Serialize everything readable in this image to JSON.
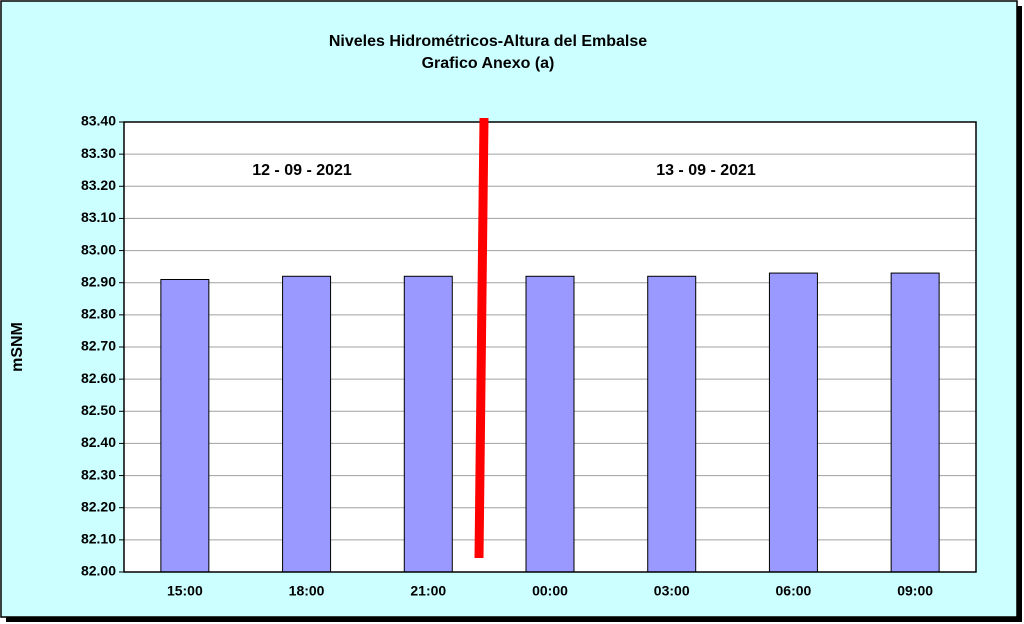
{
  "chart_data": {
    "type": "bar",
    "title": "Niveles Hidrométricos-Altura del Embalse",
    "subtitle": "Grafico Anexo (a)",
    "y_label": "mSNM",
    "annotations": [
      "12 - 09 - 2021",
      "13 - 09 - 2021"
    ],
    "categories": [
      "15:00",
      "18:00",
      "21:00",
      "00:00",
      "03:00",
      "06:00",
      "09:00"
    ],
    "values": [
      82.91,
      82.92,
      82.92,
      82.92,
      82.92,
      82.93,
      82.93
    ],
    "color": "#9999ff",
    "ylim": [
      82,
      83.4
    ],
    "yticks": [
      {
        "value": 82,
        "label": "82.00"
      },
      {
        "value": 82.1,
        "label": "82.10"
      },
      {
        "value": 82.2,
        "label": "82.20"
      },
      {
        "value": 82.3,
        "label": "82.30"
      },
      {
        "value": 82.4,
        "label": "82.40"
      },
      {
        "value": 82.5,
        "label": "82.50"
      },
      {
        "value": 82.6,
        "label": "82.60"
      },
      {
        "value": 82.7,
        "label": "82.70"
      },
      {
        "value": 82.8,
        "label": "82.80"
      },
      {
        "value": 82.9,
        "label": "82.90"
      },
      {
        "value": 83,
        "label": "83.00"
      },
      {
        "value": 83.1,
        "label": "83.10"
      },
      {
        "value": 83.2,
        "label": "83.20"
      },
      {
        "value": 83.3,
        "label": "83.30"
      },
      {
        "value": 83.4,
        "label": "83.40"
      }
    ],
    "grid": true
  }
}
